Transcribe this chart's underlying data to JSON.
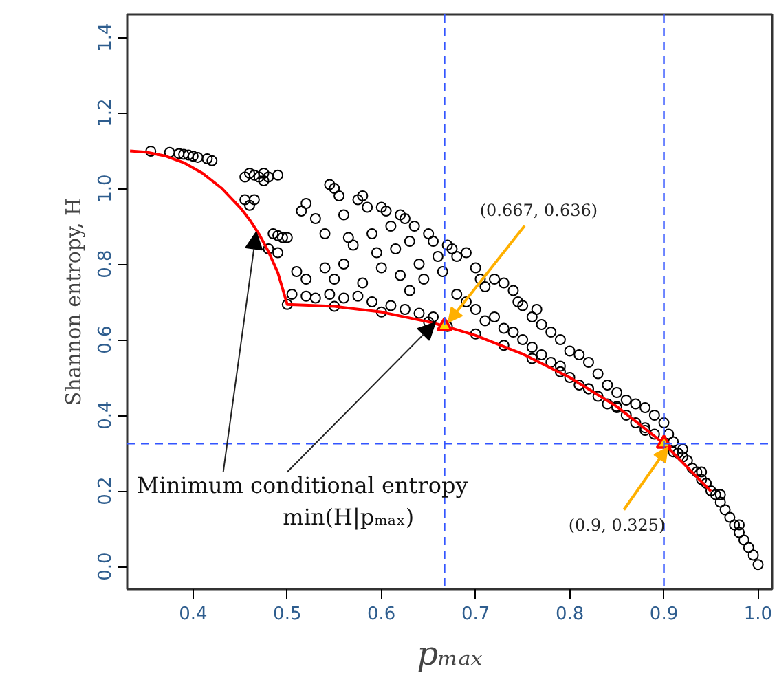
{
  "chart_data": {
    "type": "scatter",
    "xlabel": "pₘₐₓ",
    "ylabel": "Shannon entropy, H",
    "xlim": [
      0.33,
      1.015
    ],
    "ylim": [
      -0.06,
      1.46
    ],
    "xticks": [
      0.4,
      0.5,
      0.6,
      0.7,
      0.8,
      0.9,
      {
        "value": 1.0,
        "label": "1.0"
      }
    ],
    "yticks": [
      {
        "value": 0,
        "label": "0.0"
      },
      0.2,
      0.4,
      0.6,
      0.8,
      {
        "value": 1.0,
        "label": "1.0"
      },
      1.2,
      1.4
    ],
    "grid": false,
    "series": [
      {
        "type": "scatter",
        "marker": "circle",
        "color": "#000000",
        "x": [
          0.355,
          0.375,
          0.385,
          0.39,
          0.395,
          0.4,
          0.405,
          0.415,
          0.42,
          0.455,
          0.46,
          0.465,
          0.47,
          0.475,
          0.48,
          0.49,
          0.455,
          0.46,
          0.465,
          0.475,
          0.485,
          0.49,
          0.495,
          0.48,
          0.49,
          0.5,
          0.51,
          0.52,
          0.515,
          0.52,
          0.53,
          0.54,
          0.545,
          0.55,
          0.555,
          0.56,
          0.565,
          0.57,
          0.575,
          0.58,
          0.585,
          0.59,
          0.595,
          0.6,
          0.605,
          0.61,
          0.615,
          0.62,
          0.625,
          0.63,
          0.635,
          0.64,
          0.645,
          0.65,
          0.655,
          0.66,
          0.665,
          0.54,
          0.55,
          0.56,
          0.58,
          0.6,
          0.62,
          0.63,
          0.505,
          0.52,
          0.53,
          0.545,
          0.56,
          0.575,
          0.59,
          0.61,
          0.625,
          0.64,
          0.655,
          0.5,
          0.55,
          0.6,
          0.65,
          0.67,
          0.675,
          0.68,
          0.69,
          0.7,
          0.705,
          0.71,
          0.72,
          0.73,
          0.74,
          0.745,
          0.75,
          0.76,
          0.765,
          0.77,
          0.78,
          0.79,
          0.8,
          0.81,
          0.82,
          0.83,
          0.84,
          0.85,
          0.86,
          0.87,
          0.88,
          0.89,
          0.9,
          0.68,
          0.69,
          0.7,
          0.71,
          0.72,
          0.73,
          0.74,
          0.75,
          0.76,
          0.77,
          0.78,
          0.79,
          0.8,
          0.81,
          0.82,
          0.83,
          0.84,
          0.85,
          0.86,
          0.87,
          0.88,
          0.89,
          0.67,
          0.7,
          0.73,
          0.76,
          0.79,
          0.82,
          0.85,
          0.88,
          0.91,
          0.905,
          0.91,
          0.915,
          0.92,
          0.925,
          0.93,
          0.935,
          0.94,
          0.945,
          0.95,
          0.955,
          0.96,
          0.965,
          0.97,
          0.975,
          0.98,
          0.985,
          0.99,
          0.995,
          1.0,
          0.92,
          0.94,
          0.96,
          0.98
        ],
        "values": [
          1.098,
          1.095,
          1.092,
          1.09,
          1.088,
          1.085,
          1.082,
          1.078,
          1.073,
          1.03,
          1.04,
          1.035,
          1.03,
          1.04,
          1.03,
          1.035,
          0.97,
          0.955,
          0.97,
          1.02,
          0.88,
          0.875,
          0.87,
          0.84,
          0.83,
          0.87,
          0.78,
          0.76,
          0.94,
          0.96,
          0.92,
          0.88,
          1.01,
          1.0,
          0.98,
          0.93,
          0.87,
          0.85,
          0.97,
          0.98,
          0.95,
          0.88,
          0.83,
          0.95,
          0.94,
          0.9,
          0.84,
          0.93,
          0.92,
          0.86,
          0.9,
          0.8,
          0.76,
          0.88,
          0.86,
          0.82,
          0.78,
          0.79,
          0.76,
          0.8,
          0.75,
          0.79,
          0.77,
          0.73,
          0.72,
          0.715,
          0.71,
          0.72,
          0.71,
          0.715,
          0.7,
          0.69,
          0.68,
          0.67,
          0.66,
          0.693,
          0.688,
          0.673,
          0.647,
          0.85,
          0.84,
          0.82,
          0.83,
          0.79,
          0.76,
          0.74,
          0.76,
          0.75,
          0.73,
          0.7,
          0.69,
          0.66,
          0.68,
          0.64,
          0.62,
          0.6,
          0.57,
          0.56,
          0.54,
          0.51,
          0.48,
          0.46,
          0.44,
          0.43,
          0.42,
          0.4,
          0.38,
          0.72,
          0.7,
          0.68,
          0.65,
          0.66,
          0.63,
          0.62,
          0.6,
          0.58,
          0.56,
          0.54,
          0.53,
          0.5,
          0.48,
          0.47,
          0.45,
          0.43,
          0.42,
          0.4,
          0.38,
          0.36,
          0.35,
          0.635,
          0.615,
          0.585,
          0.55,
          0.515,
          0.47,
          0.423,
          0.367,
          0.303,
          0.35,
          0.33,
          0.3,
          0.29,
          0.28,
          0.26,
          0.25,
          0.23,
          0.22,
          0.2,
          0.19,
          0.17,
          0.15,
          0.13,
          0.11,
          0.09,
          0.07,
          0.05,
          0.03,
          0.005,
          0.31,
          0.25,
          0.19,
          0.11
        ]
      },
      {
        "type": "line",
        "color": "#ff0000",
        "x": [
          0.333,
          0.35,
          0.37,
          0.39,
          0.41,
          0.43,
          0.45,
          0.46,
          0.47,
          0.48,
          0.49,
          0.5,
          0.55,
          0.6,
          0.65,
          0.667,
          0.7,
          0.75,
          0.8,
          0.85,
          0.9,
          0.95
        ],
        "values": [
          1.099,
          1.096,
          1.086,
          1.068,
          1.04,
          1.001,
          0.949,
          0.917,
          0.879,
          0.833,
          0.777,
          0.693,
          0.688,
          0.673,
          0.647,
          0.636,
          0.611,
          0.562,
          0.5,
          0.423,
          0.325,
          0.199
        ]
      },
      {
        "type": "scatter",
        "marker": "triangle",
        "color": "#ff0000",
        "x": [
          0.667,
          0.9
        ],
        "values": [
          0.636,
          0.325
        ]
      }
    ],
    "ref_lines": [
      {
        "axis": "x",
        "value": 0.667,
        "color": "#3355ff",
        "line_style": "dashed"
      },
      {
        "axis": "x",
        "value": 0.9,
        "color": "#3355ff",
        "line_style": "dashed"
      },
      {
        "axis": "y",
        "value": 0.325,
        "color": "#3355ff",
        "line_style": "dashed"
      }
    ],
    "annotations": [
      {
        "text": "(0.667, 0.636)",
        "x": 0.667,
        "y": 0.636
      },
      {
        "text": "(0.9, 0.325)",
        "x": 0.9,
        "y": 0.325
      },
      {
        "text": "Minimum conditional entropy\nmin(H|pₘₐₓ)",
        "x": 0.47,
        "y": 0.879
      }
    ]
  }
}
